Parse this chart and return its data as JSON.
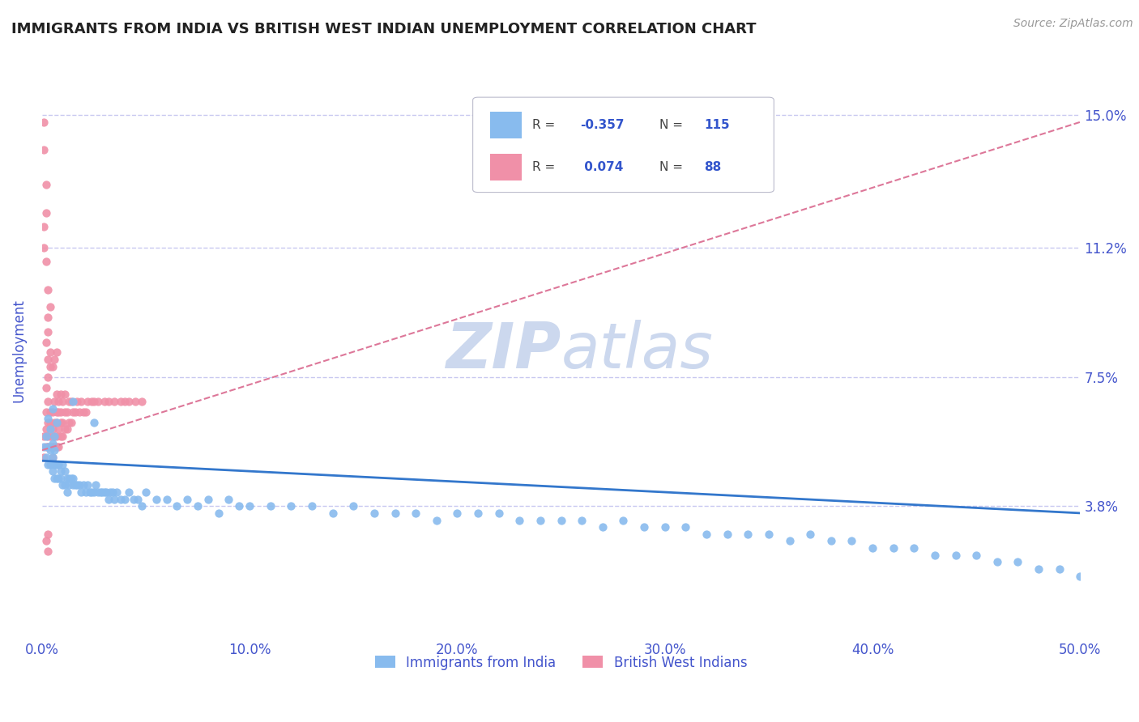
{
  "title": "IMMIGRANTS FROM INDIA VS BRITISH WEST INDIAN UNEMPLOYMENT CORRELATION CHART",
  "source_text": "Source: ZipAtlas.com",
  "ylabel": "Unemployment",
  "xlim": [
    0.0,
    0.5
  ],
  "ylim": [
    0.0,
    0.165
  ],
  "xticks": [
    0.0,
    0.1,
    0.2,
    0.3,
    0.4,
    0.5
  ],
  "xticklabels": [
    "0.0%",
    "10.0%",
    "20.0%",
    "30.0%",
    "40.0%",
    "50.0%"
  ],
  "ytick_positions": [
    0.038,
    0.075,
    0.112,
    0.15
  ],
  "ytick_labels": [
    "3.8%",
    "7.5%",
    "11.2%",
    "15.0%"
  ],
  "grid_color": "#c8c8f0",
  "background_color": "#ffffff",
  "tick_label_color": "#4455cc",
  "series1_color": "#88bbee",
  "series1_label": "Immigrants from India",
  "series2_color": "#f090a8",
  "series2_label": "British West Indians",
  "trend1_color": "#3377cc",
  "trend2_color": "#dd7799",
  "watermark_text": "ZIPatlas",
  "watermark_color": "#ccd8ee",
  "trend1_x": [
    0.0,
    0.5
  ],
  "trend1_y": [
    0.051,
    0.036
  ],
  "trend2_x": [
    0.0,
    0.5
  ],
  "trend2_y": [
    0.054,
    0.148
  ],
  "blue_scatter_x": [
    0.001,
    0.002,
    0.002,
    0.003,
    0.003,
    0.004,
    0.004,
    0.005,
    0.005,
    0.005,
    0.006,
    0.006,
    0.006,
    0.007,
    0.007,
    0.008,
    0.008,
    0.009,
    0.009,
    0.01,
    0.01,
    0.011,
    0.011,
    0.012,
    0.012,
    0.013,
    0.013,
    0.014,
    0.015,
    0.015,
    0.016,
    0.017,
    0.018,
    0.019,
    0.02,
    0.021,
    0.022,
    0.023,
    0.024,
    0.025,
    0.026,
    0.027,
    0.028,
    0.029,
    0.03,
    0.031,
    0.032,
    0.033,
    0.034,
    0.035,
    0.036,
    0.038,
    0.04,
    0.042,
    0.044,
    0.046,
    0.048,
    0.05,
    0.055,
    0.06,
    0.065,
    0.07,
    0.075,
    0.08,
    0.085,
    0.09,
    0.095,
    0.1,
    0.11,
    0.12,
    0.13,
    0.14,
    0.15,
    0.16,
    0.17,
    0.18,
    0.19,
    0.2,
    0.21,
    0.22,
    0.23,
    0.24,
    0.25,
    0.26,
    0.27,
    0.28,
    0.29,
    0.3,
    0.31,
    0.32,
    0.33,
    0.34,
    0.35,
    0.36,
    0.37,
    0.38,
    0.39,
    0.4,
    0.41,
    0.42,
    0.43,
    0.44,
    0.45,
    0.46,
    0.47,
    0.48,
    0.49,
    0.5,
    0.003,
    0.004,
    0.005,
    0.006,
    0.007,
    0.015,
    0.025
  ],
  "blue_scatter_y": [
    0.055,
    0.052,
    0.058,
    0.05,
    0.055,
    0.05,
    0.054,
    0.048,
    0.052,
    0.056,
    0.05,
    0.054,
    0.046,
    0.05,
    0.046,
    0.05,
    0.046,
    0.048,
    0.046,
    0.05,
    0.044,
    0.048,
    0.044,
    0.046,
    0.042,
    0.046,
    0.044,
    0.046,
    0.044,
    0.046,
    0.044,
    0.044,
    0.044,
    0.042,
    0.044,
    0.042,
    0.044,
    0.042,
    0.042,
    0.042,
    0.044,
    0.042,
    0.042,
    0.042,
    0.042,
    0.042,
    0.04,
    0.042,
    0.042,
    0.04,
    0.042,
    0.04,
    0.04,
    0.042,
    0.04,
    0.04,
    0.038,
    0.042,
    0.04,
    0.04,
    0.038,
    0.04,
    0.038,
    0.04,
    0.036,
    0.04,
    0.038,
    0.038,
    0.038,
    0.038,
    0.038,
    0.036,
    0.038,
    0.036,
    0.036,
    0.036,
    0.034,
    0.036,
    0.036,
    0.036,
    0.034,
    0.034,
    0.034,
    0.034,
    0.032,
    0.034,
    0.032,
    0.032,
    0.032,
    0.03,
    0.03,
    0.03,
    0.03,
    0.028,
    0.03,
    0.028,
    0.028,
    0.026,
    0.026,
    0.026,
    0.024,
    0.024,
    0.024,
    0.022,
    0.022,
    0.02,
    0.02,
    0.018,
    0.063,
    0.06,
    0.066,
    0.058,
    0.062,
    0.068,
    0.062
  ],
  "pink_scatter_x": [
    0.001,
    0.001,
    0.002,
    0.002,
    0.002,
    0.003,
    0.003,
    0.003,
    0.003,
    0.004,
    0.004,
    0.004,
    0.004,
    0.005,
    0.005,
    0.005,
    0.005,
    0.006,
    0.006,
    0.006,
    0.006,
    0.007,
    0.007,
    0.007,
    0.007,
    0.007,
    0.008,
    0.008,
    0.008,
    0.008,
    0.009,
    0.009,
    0.009,
    0.009,
    0.01,
    0.01,
    0.01,
    0.011,
    0.011,
    0.011,
    0.012,
    0.012,
    0.013,
    0.013,
    0.014,
    0.014,
    0.015,
    0.016,
    0.017,
    0.018,
    0.019,
    0.02,
    0.021,
    0.022,
    0.024,
    0.025,
    0.027,
    0.03,
    0.032,
    0.035,
    0.038,
    0.04,
    0.042,
    0.045,
    0.048,
    0.002,
    0.003,
    0.003,
    0.004,
    0.004,
    0.005,
    0.006,
    0.007,
    0.002,
    0.003,
    0.003,
    0.004,
    0.003,
    0.002,
    0.001,
    0.001,
    0.002,
    0.002,
    0.001,
    0.001,
    0.002,
    0.003,
    0.003
  ],
  "pink_scatter_y": [
    0.052,
    0.058,
    0.055,
    0.06,
    0.065,
    0.055,
    0.058,
    0.062,
    0.068,
    0.055,
    0.058,
    0.062,
    0.065,
    0.052,
    0.055,
    0.06,
    0.065,
    0.055,
    0.058,
    0.062,
    0.068,
    0.055,
    0.058,
    0.062,
    0.065,
    0.07,
    0.055,
    0.06,
    0.065,
    0.068,
    0.058,
    0.062,
    0.065,
    0.07,
    0.058,
    0.062,
    0.068,
    0.06,
    0.065,
    0.07,
    0.06,
    0.065,
    0.062,
    0.068,
    0.062,
    0.068,
    0.065,
    0.065,
    0.068,
    0.065,
    0.068,
    0.065,
    0.065,
    0.068,
    0.068,
    0.068,
    0.068,
    0.068,
    0.068,
    0.068,
    0.068,
    0.068,
    0.068,
    0.068,
    0.068,
    0.072,
    0.075,
    0.08,
    0.078,
    0.082,
    0.078,
    0.08,
    0.082,
    0.085,
    0.088,
    0.092,
    0.095,
    0.1,
    0.108,
    0.112,
    0.118,
    0.122,
    0.13,
    0.14,
    0.148,
    0.028,
    0.03,
    0.025
  ]
}
